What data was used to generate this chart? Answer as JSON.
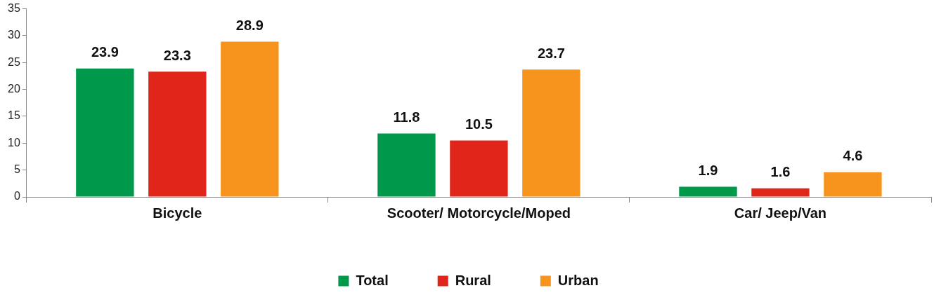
{
  "chart_data": {
    "type": "bar",
    "categories": [
      "Bicycle",
      "Scooter/ Motorcycle/Moped",
      "Car/ Jeep/Van"
    ],
    "series": [
      {
        "name": "Total",
        "color": "#00994c",
        "values": [
          23.9,
          11.8,
          1.9
        ]
      },
      {
        "name": "Rural",
        "color": "#e0261a",
        "values": [
          23.3,
          10.5,
          1.6
        ]
      },
      {
        "name": "Urban",
        "color": "#f7941d",
        "values": [
          28.9,
          23.7,
          4.6
        ]
      }
    ],
    "ylim": [
      0,
      35
    ],
    "yticks": [
      0,
      5,
      10,
      15,
      20,
      25,
      30,
      35
    ],
    "grid": false,
    "legend": "bottom",
    "data_labels": true
  }
}
